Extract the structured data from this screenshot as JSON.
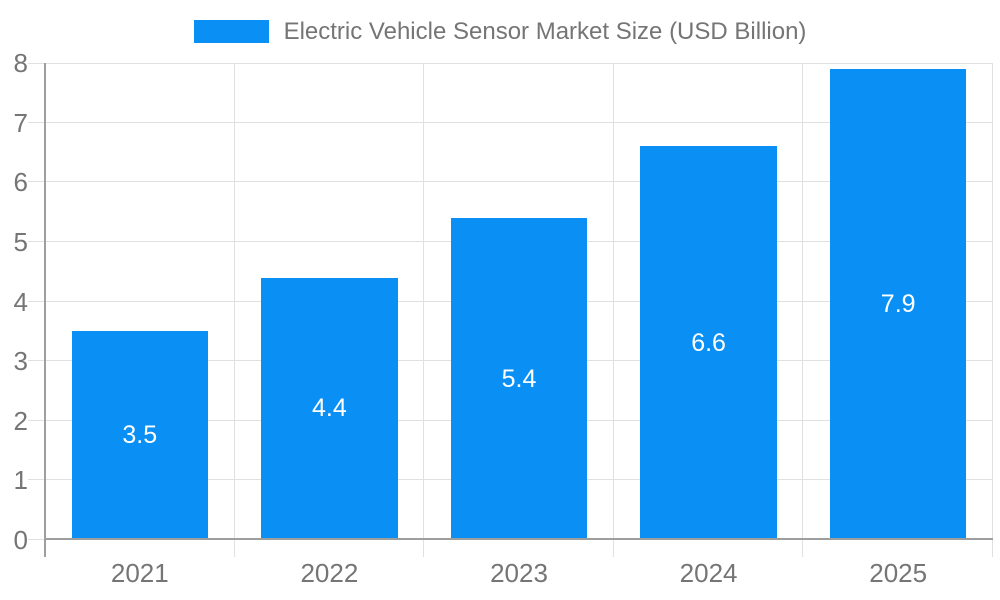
{
  "legend": {
    "label": "Electric Vehicle Sensor Market Size (USD Billion)"
  },
  "colors": {
    "bar": "#0a90f5",
    "bar_label": "#ffffff",
    "axis_line": "#9e9e9e",
    "gridline": "#e0e0e0",
    "tick_text": "#757575",
    "background": "#ffffff"
  },
  "chart_data": {
    "type": "bar",
    "categories": [
      "2021",
      "2022",
      "2023",
      "2024",
      "2025"
    ],
    "series": [
      {
        "name": "Electric Vehicle Sensor Market Size (USD Billion)",
        "values": [
          3.5,
          4.4,
          5.4,
          6.6,
          7.9
        ]
      }
    ],
    "title": "",
    "xlabel": "",
    "ylabel": "",
    "ylim": [
      0,
      8
    ],
    "ytick_step": 1,
    "yticks": [
      0,
      1,
      2,
      3,
      4,
      5,
      6,
      7,
      8
    ],
    "grid": true,
    "legend_position": "top",
    "bar_labels_shown": true,
    "bar_width_fraction": 0.72
  }
}
